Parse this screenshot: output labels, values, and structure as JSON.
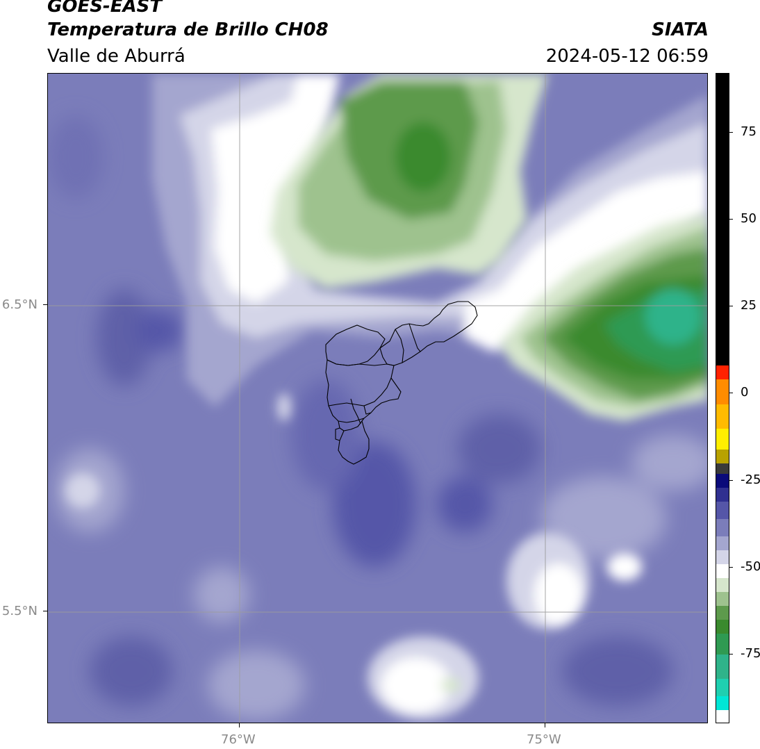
{
  "header": {
    "satellite": "GOES-EAST",
    "product": "Temperatura de Brillo CH08",
    "region": "Valle de Aburrá",
    "agency": "SIATA",
    "datetime": "2024-05-12 06:59"
  },
  "map": {
    "lat_labels": [
      "6.5°N",
      "5.5°N"
    ],
    "lon_labels": [
      "76°W",
      "75°W"
    ],
    "background_color": "#7b7dba",
    "gridline_color": "#9c9c9c",
    "boundary_color": "#000000"
  },
  "colorbar": {
    "tick_labels": [
      "75",
      "50",
      "25",
      "0",
      "-25",
      "-50",
      "-75"
    ],
    "tick_values": [
      75,
      50,
      25,
      0,
      -25,
      -50,
      -75
    ],
    "range": [
      -95,
      92
    ],
    "segments": [
      {
        "from": 8,
        "to": 92,
        "color": "#000000"
      },
      {
        "from": 4,
        "to": 8,
        "color": "#ff2200"
      },
      {
        "from": -3,
        "to": 4,
        "color": "#ff8c00"
      },
      {
        "from": -10,
        "to": -3,
        "color": "#ffbb00"
      },
      {
        "from": -16,
        "to": -10,
        "color": "#ffee00"
      },
      {
        "from": -20,
        "to": -16,
        "color": "#b8a200"
      },
      {
        "from": -23,
        "to": -20,
        "color": "#3a3a3a"
      },
      {
        "from": -27,
        "to": -23,
        "color": "#0a0a7a"
      },
      {
        "from": -31,
        "to": -27,
        "color": "#303090"
      },
      {
        "from": -36,
        "to": -31,
        "color": "#5556a8"
      },
      {
        "from": -41,
        "to": -36,
        "color": "#7b7dba"
      },
      {
        "from": -45,
        "to": -41,
        "color": "#a4a6cf"
      },
      {
        "from": -49,
        "to": -45,
        "color": "#d4d5e8"
      },
      {
        "from": -53,
        "to": -49,
        "color": "#ffffff"
      },
      {
        "from": -57,
        "to": -53,
        "color": "#d6e6cc"
      },
      {
        "from": -61,
        "to": -57,
        "color": "#9ec28e"
      },
      {
        "from": -65,
        "to": -61,
        "color": "#5d9a4c"
      },
      {
        "from": -69,
        "to": -65,
        "color": "#3a8a2e"
      },
      {
        "from": -75,
        "to": -69,
        "color": "#2f9a52"
      },
      {
        "from": -82,
        "to": -75,
        "color": "#2fb38a"
      },
      {
        "from": -87,
        "to": -82,
        "color": "#1fcfb0"
      },
      {
        "from": -91,
        "to": -87,
        "color": "#00e6d6"
      },
      {
        "from": -95,
        "to": -91,
        "color": "#ffffff"
      }
    ]
  }
}
